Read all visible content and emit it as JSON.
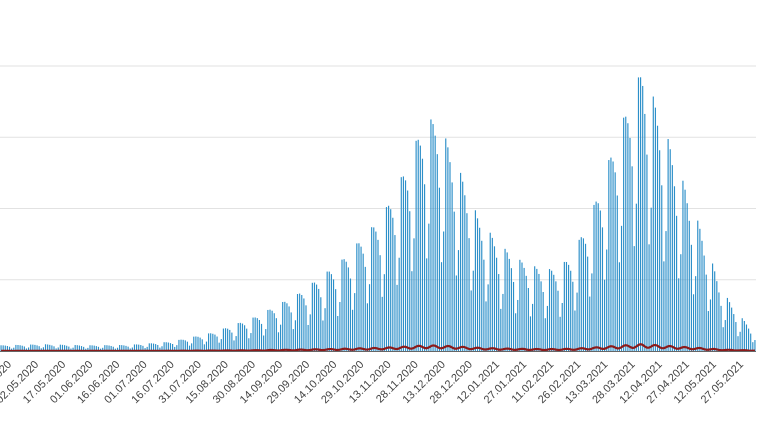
{
  "chart_data": {
    "type": "bar",
    "title": "",
    "xlabel": "",
    "ylabel": "",
    "grid": true,
    "ylim": [
      0,
      4000
    ],
    "x_tick_labels": [
      "..2020",
      "02.05.2020",
      "17.05.2020",
      "01.06.2020",
      "16.06.2020",
      "01.07.2020",
      "16.07.2020",
      "31.07.2020",
      "15.08.2020",
      "30.08.2020",
      "14.09.2020",
      "29.09.2020",
      "14.10.2020",
      "29.10.2020",
      "13.11.2020",
      "28.11.2020",
      "13.12.2020",
      "28.12.2020",
      "12.01.2021",
      "27.01.2021",
      "11.02.2021",
      "26.02.2021",
      "13.03.2021",
      "28.03.2021",
      "12.04.2021",
      "27.04.2021",
      "12.05.2021",
      "27.05.2021"
    ],
    "series": [
      {
        "kind": "bar",
        "color": "#2c8fc9",
        "weekly_pattern": [
          1.0,
          0.98,
          0.93,
          0.85,
          0.72,
          0.4,
          0.55
        ],
        "envelope": [
          [
            0,
            80
          ],
          [
            20,
            95
          ],
          [
            40,
            80
          ],
          [
            60,
            85
          ],
          [
            80,
            130
          ],
          [
            100,
            260
          ],
          [
            120,
            480
          ],
          [
            140,
            800
          ],
          [
            160,
            1250
          ],
          [
            180,
            1900
          ],
          [
            190,
            2500
          ],
          [
            200,
            3250
          ],
          [
            206,
            3250
          ],
          [
            215,
            2650
          ],
          [
            225,
            1900
          ],
          [
            235,
            1500
          ],
          [
            245,
            1280
          ],
          [
            255,
            1150
          ],
          [
            262,
            1150
          ],
          [
            270,
            1350
          ],
          [
            280,
            2050
          ],
          [
            290,
            2950
          ],
          [
            298,
            3600
          ],
          [
            303,
            4000
          ],
          [
            310,
            3400
          ],
          [
            320,
            2550
          ],
          [
            330,
            1750
          ],
          [
            340,
            880
          ],
          [
            348,
            520
          ],
          [
            356,
            280
          ]
        ]
      },
      {
        "kind": "line",
        "color": "#8b1a1a",
        "values_scale": 0.018
      }
    ]
  }
}
